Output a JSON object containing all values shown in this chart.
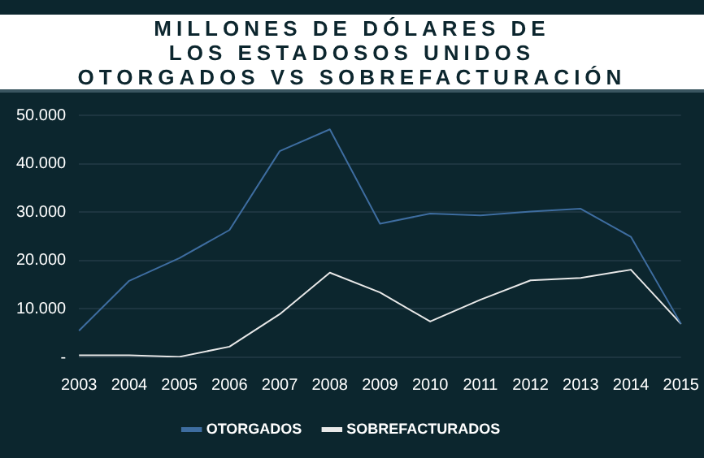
{
  "chart_data": {
    "type": "line",
    "title": "MILLONES DE DÓLARES DE\nLOS ESTADOSOS UNIDOS\nOTORGADOS VS SOBREFACTURACIÓN",
    "categories": [
      "2003",
      "2004",
      "2005",
      "2006",
      "2007",
      "2008",
      "2009",
      "2010",
      "2011",
      "2012",
      "2013",
      "2014",
      "2015"
    ],
    "series": [
      {
        "name": "OTORGADOS",
        "color": "#3e6da0",
        "values": [
          5500,
          15800,
          20500,
          26300,
          42600,
          47100,
          27600,
          29700,
          29300,
          30100,
          30700,
          24900,
          6900
        ]
      },
      {
        "name": "SOBREFACTURADOS",
        "color": "#e8e8e8",
        "values": [
          400,
          400,
          100,
          2200,
          8900,
          17500,
          13400,
          7400,
          11900,
          15900,
          16400,
          18100,
          6900
        ]
      }
    ],
    "ylim": [
      0,
      50000
    ],
    "yticks": [
      {
        "value": 0,
        "label": "-"
      },
      {
        "value": 10000,
        "label": "10.000"
      },
      {
        "value": 20000,
        "label": "20.000"
      },
      {
        "value": 30000,
        "label": "30.000"
      },
      {
        "value": 40000,
        "label": "40.000"
      },
      {
        "value": 50000,
        "label": "50.000"
      }
    ],
    "grid": "y",
    "legend": "bottom",
    "marker": "none",
    "line_style": "solid"
  }
}
